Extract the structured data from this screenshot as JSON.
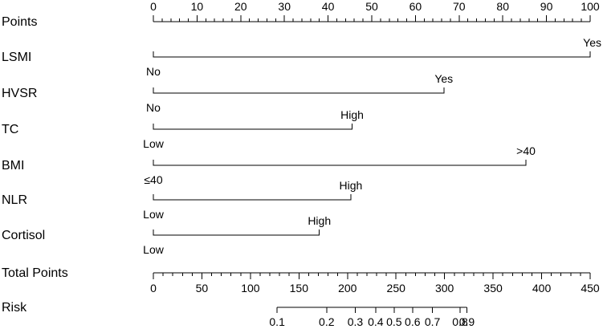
{
  "chart_data": {
    "type": "nomogram",
    "points_axis": {
      "label": "Points",
      "range": [
        0,
        100
      ],
      "major_ticks": [
        0,
        10,
        20,
        30,
        40,
        50,
        60,
        70,
        80,
        90,
        100
      ],
      "minor_step": 2
    },
    "variables": [
      {
        "label": "LSMI",
        "low": {
          "label": "No",
          "points": 0
        },
        "high": {
          "label": "Yes",
          "points": 100
        }
      },
      {
        "label": "HVSR",
        "low": {
          "label": "No",
          "points": 0
        },
        "high": {
          "label": "Yes",
          "points": 66.5
        }
      },
      {
        "label": "TC",
        "low": {
          "label": "Low",
          "points": 0
        },
        "high": {
          "label": "High",
          "points": 45.5
        }
      },
      {
        "label": "BMI",
        "low": {
          "label": "≤40",
          "points": 0
        },
        "high": {
          "label": ">40",
          "points": 85.3
        }
      },
      {
        "label": "NLR",
        "low": {
          "label": "Low",
          "points": 0
        },
        "high": {
          "label": "High",
          "points": 45.2
        }
      },
      {
        "label": "Cortisol",
        "low": {
          "label": "Low",
          "points": 0
        },
        "high": {
          "label": "High",
          "points": 38
        }
      }
    ],
    "total_points_axis": {
      "label": "Total Points",
      "range": [
        0,
        450
      ],
      "major_ticks": [
        0,
        50,
        100,
        150,
        200,
        250,
        300,
        350,
        400,
        450
      ],
      "minor_step": 10
    },
    "risk_axis": {
      "label": "Risk",
      "ticks": [
        {
          "label": "0.1",
          "total_points": 127.5
        },
        {
          "label": "0.2",
          "total_points": 178.5
        },
        {
          "label": "0.3",
          "total_points": 208
        },
        {
          "label": "0.4",
          "total_points": 229
        },
        {
          "label": "0.5",
          "total_points": 248
        },
        {
          "label": "0.6",
          "total_points": 267
        },
        {
          "label": "0.7",
          "total_points": 287.5
        },
        {
          "label": "0.8",
          "total_points": 316
        },
        {
          "label": "0.9",
          "total_points": 323
        }
      ],
      "tick_label_text": [
        "0.1",
        "0.2",
        "0.3",
        "0.4",
        "0.5",
        "0.6",
        "0.7",
        "0.8",
        "0.9"
      ]
    }
  }
}
